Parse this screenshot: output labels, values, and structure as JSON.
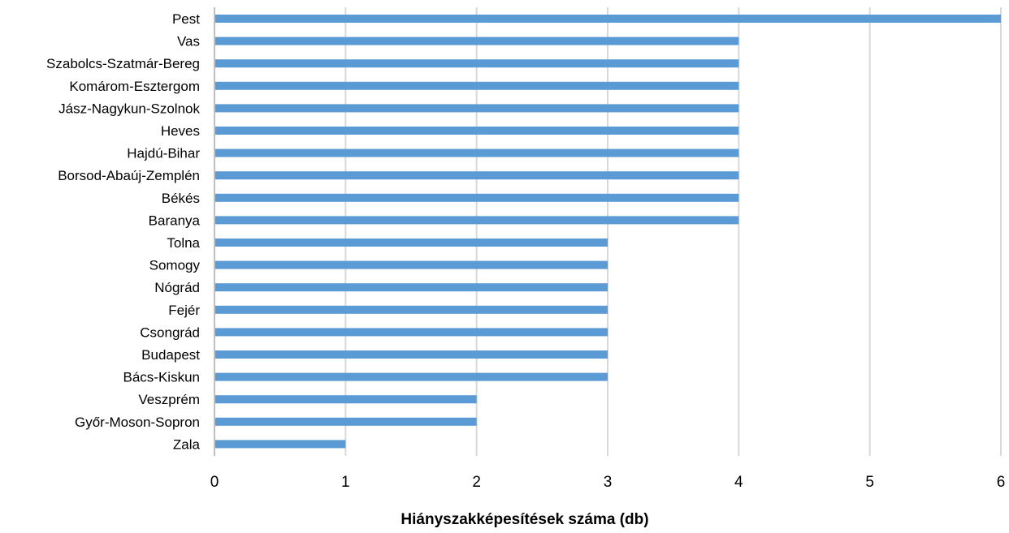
{
  "chart_data": {
    "type": "bar",
    "orientation": "horizontal",
    "categories": [
      "Pest",
      "Vas",
      "Szabolcs-Szatmár-Bereg",
      "Komárom-Esztergom",
      "Jász-Nagykun-Szolnok",
      "Heves",
      "Hajdú-Bihar",
      "Borsod-Abaúj-Zemplén",
      "Békés",
      "Baranya",
      "Tolna",
      "Somogy",
      "Nógrád",
      "Fejér",
      "Csongrád",
      "Budapest",
      "Bács-Kiskun",
      "Veszprém",
      "Győr-Moson-Sopron",
      "Zala"
    ],
    "values": [
      6,
      4,
      4,
      4,
      4,
      4,
      4,
      4,
      4,
      4,
      3,
      3,
      3,
      3,
      3,
      3,
      3,
      2,
      2,
      1
    ],
    "xlabel": "Hiányszakképesítések száma (db)",
    "ylabel": "",
    "xlim": [
      0,
      6
    ],
    "xticks": [
      "0",
      "1",
      "2",
      "3",
      "4",
      "5",
      "6"
    ],
    "grid": "vertical",
    "bar_color": "#5b9bd5",
    "grid_color": "#d9d9d9"
  }
}
